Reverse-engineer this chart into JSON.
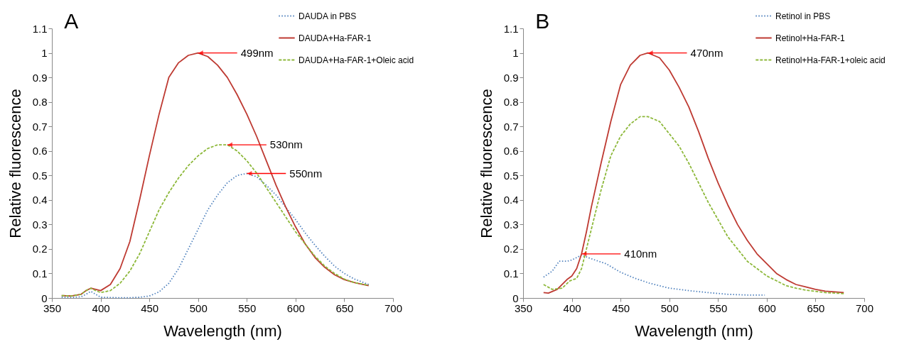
{
  "chart_data": [
    {
      "type": "line",
      "title": "A",
      "xlabel": "Wavelength (nm)",
      "ylabel": "Relative fluorescence",
      "xlim": [
        350,
        700
      ],
      "xticks": [
        350,
        400,
        450,
        500,
        550,
        600,
        650,
        700
      ],
      "ylim": [
        0,
        1.1
      ],
      "yticks": [
        0,
        0.1,
        0.2,
        0.3,
        0.4,
        0.5,
        0.6,
        0.7,
        0.8,
        0.9,
        1,
        1.1
      ],
      "grid": false,
      "legend": "top right",
      "marker": "none",
      "x": [
        360,
        370,
        380,
        385,
        390,
        395,
        400,
        410,
        420,
        430,
        440,
        450,
        460,
        470,
        480,
        490,
        500,
        510,
        520,
        530,
        540,
        550,
        560,
        570,
        580,
        590,
        600,
        610,
        620,
        630,
        640,
        650,
        660,
        675
      ],
      "series": [
        {
          "name": "DAUDA in PBS",
          "color": "#4f81bd",
          "line_style": "dotted",
          "values": [
            0.003,
            0.002,
            0.005,
            0.015,
            0.027,
            0.015,
            0.003,
            0.002,
            0.001,
            0.001,
            0.003,
            0.008,
            0.025,
            0.06,
            0.12,
            0.2,
            0.28,
            0.36,
            0.42,
            0.47,
            0.5,
            0.508,
            0.495,
            0.46,
            0.42,
            0.37,
            0.32,
            0.265,
            0.215,
            0.17,
            0.13,
            0.1,
            0.078,
            0.055
          ]
        },
        {
          "name": "DAUDA+Ha-FAR-1",
          "color": "#be3a32",
          "line_style": "solid",
          "values": [
            0.01,
            0.008,
            0.015,
            0.03,
            0.04,
            0.035,
            0.03,
            0.055,
            0.12,
            0.23,
            0.4,
            0.58,
            0.75,
            0.9,
            0.96,
            0.99,
            1.0,
            0.985,
            0.95,
            0.9,
            0.83,
            0.75,
            0.66,
            0.56,
            0.46,
            0.37,
            0.29,
            0.22,
            0.165,
            0.125,
            0.095,
            0.075,
            0.063,
            0.05
          ]
        },
        {
          "name": "DAUDA+Ha-FAR-1+Oleic acid",
          "color": "#8db83a",
          "line_style": "dashed",
          "values": [
            0.01,
            0.008,
            0.015,
            0.03,
            0.04,
            0.03,
            0.022,
            0.03,
            0.06,
            0.11,
            0.18,
            0.27,
            0.36,
            0.43,
            0.49,
            0.54,
            0.58,
            0.61,
            0.625,
            0.625,
            0.6,
            0.56,
            0.51,
            0.45,
            0.39,
            0.33,
            0.27,
            0.22,
            0.17,
            0.13,
            0.1,
            0.077,
            0.063,
            0.052
          ]
        }
      ],
      "annotations": [
        {
          "text": "499nm",
          "x": 500,
          "y": 1.0
        },
        {
          "text": "530nm",
          "x": 530,
          "y": 0.625
        },
        {
          "text": "550nm",
          "x": 550,
          "y": 0.508
        }
      ]
    },
    {
      "type": "line",
      "title": "B",
      "xlabel": "Wavelength (nm)",
      "ylabel": "Relative fluorescence",
      "xlim": [
        350,
        700
      ],
      "xticks": [
        350,
        400,
        450,
        500,
        550,
        600,
        650,
        700
      ],
      "ylim": [
        0,
        1.1
      ],
      "yticks": [
        0,
        0.1,
        0.2,
        0.3,
        0.4,
        0.5,
        0.6,
        0.7,
        0.8,
        0.9,
        1,
        1.1
      ],
      "grid": false,
      "legend": "top right",
      "marker": "none",
      "series": [
        {
          "name": "Retinol in PBS",
          "color": "#4f81bd",
          "line_style": "dotted",
          "x": [
            371,
            380,
            387,
            395,
            400,
            410,
            420,
            435,
            450,
            465,
            480,
            500,
            520,
            540,
            560,
            580,
            598
          ],
          "values": [
            0.085,
            0.11,
            0.15,
            0.15,
            0.155,
            0.175,
            0.16,
            0.14,
            0.105,
            0.08,
            0.06,
            0.04,
            0.03,
            0.022,
            0.015,
            0.012,
            0.012
          ]
        },
        {
          "name": "Retinol+Ha-FAR-1",
          "color": "#be3a32",
          "line_style": "solid",
          "x": [
            371,
            376,
            385,
            395,
            400,
            405,
            410,
            415,
            420,
            430,
            440,
            450,
            460,
            470,
            478,
            490,
            500,
            510,
            520,
            530,
            540,
            550,
            560,
            570,
            580,
            590,
            600,
            610,
            620,
            630,
            640,
            650,
            660,
            679
          ],
          "values": [
            0.022,
            0.02,
            0.035,
            0.075,
            0.09,
            0.12,
            0.18,
            0.27,
            0.37,
            0.55,
            0.72,
            0.87,
            0.95,
            0.99,
            1.0,
            0.98,
            0.93,
            0.86,
            0.78,
            0.68,
            0.57,
            0.47,
            0.38,
            0.3,
            0.235,
            0.18,
            0.14,
            0.1,
            0.075,
            0.055,
            0.045,
            0.035,
            0.028,
            0.022
          ]
        },
        {
          "name": "Retinol+Ha-FAR-1+oleic acid",
          "color": "#8db83a",
          "line_style": "dashed",
          "x": [
            371,
            380,
            390,
            398,
            405,
            410,
            415,
            420,
            430,
            440,
            450,
            460,
            470,
            478,
            490,
            500,
            510,
            520,
            530,
            540,
            550,
            560,
            570,
            580,
            590,
            600,
            610,
            620,
            630,
            640,
            660,
            679
          ],
          "values": [
            0.055,
            0.035,
            0.04,
            0.07,
            0.08,
            0.12,
            0.2,
            0.28,
            0.44,
            0.58,
            0.66,
            0.71,
            0.74,
            0.74,
            0.72,
            0.67,
            0.62,
            0.55,
            0.47,
            0.39,
            0.32,
            0.25,
            0.2,
            0.15,
            0.12,
            0.09,
            0.07,
            0.05,
            0.04,
            0.032,
            0.022,
            0.018
          ]
        }
      ],
      "annotations": [
        {
          "text": "470nm",
          "x": 478,
          "y": 1.0
        },
        {
          "text": "410nm",
          "x": 410,
          "y": 0.18
        }
      ]
    }
  ]
}
